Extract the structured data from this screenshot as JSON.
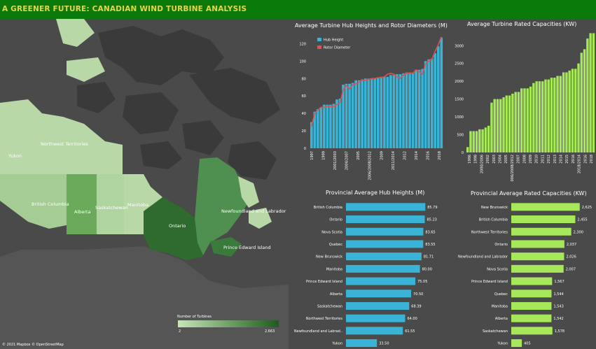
{
  "title": "A GREENER FUTURE: CANADIAN WIND TURBINE ANALYSIS",
  "map": {
    "attribution": "© 2021 Mapbox © OpenStreetMap",
    "legend_title": "Number of Turbines",
    "legend_min": "2",
    "legend_max": "2,663",
    "provinces": [
      {
        "name": "Yukon"
      },
      {
        "name": "Northwest Territories"
      },
      {
        "name": "British Columbia"
      },
      {
        "name": "Alberta"
      },
      {
        "name": "Saskatchewan"
      },
      {
        "name": "Manitoba"
      },
      {
        "name": "Ontario"
      },
      {
        "name": "Newfoundland and Labrador"
      },
      {
        "name": "Prince Edward Island"
      }
    ]
  },
  "colors": {
    "header": "#0a7a0a",
    "hub": "#3ab4d6",
    "rotor": "#e0504e",
    "capacity": "#a6e85a",
    "background": "#4a4a4a",
    "title_text": "#e6d34a"
  },
  "chart_data": [
    {
      "type": "bar",
      "title": "Average Turbine Hub Heights and Rotor Diameters (M)",
      "legend": [
        "Hub Height",
        "Rotor Diameter"
      ],
      "ylim": [
        0,
        130
      ],
      "yticks": [
        0,
        20,
        40,
        60,
        80,
        100,
        120
      ],
      "xtick_labels": [
        "1997",
        "1999",
        "2001/2003",
        "2004/2007",
        "2005",
        "2006/2008/2012",
        "2009",
        "2011/2014",
        "2012",
        "2014",
        "2016",
        "2018"
      ],
      "series": [
        {
          "name": "Hub Height",
          "values": [
            30,
            42,
            45,
            47,
            50,
            50,
            50,
            51,
            56,
            57,
            73,
            74,
            74,
            75,
            78,
            78,
            79,
            80,
            80,
            80,
            80,
            81,
            82,
            82,
            82,
            84,
            84,
            85,
            85,
            86,
            87,
            87,
            87,
            90,
            90,
            91,
            100,
            102,
            103,
            109,
            117,
            127
          ]
        },
        {
          "name": "Rotor Diameter",
          "values": [
            25,
            40,
            44,
            47,
            47,
            48,
            48,
            48,
            50,
            52,
            67,
            72,
            68,
            73,
            74,
            76,
            78,
            78,
            79,
            80,
            80,
            81,
            81,
            82,
            85,
            86,
            85,
            82,
            80,
            84,
            86,
            86,
            86,
            90,
            88,
            85,
            97,
            100,
            102,
            111,
            119,
            128
          ]
        }
      ]
    },
    {
      "type": "bar",
      "title": "Average Turbine Rated Capacities (KW)",
      "ylim": [
        0,
        3300
      ],
      "yticks": [
        0,
        500,
        1000,
        1500,
        2000,
        2500,
        3000
      ],
      "xtick_labels": [
        "1996",
        "1998",
        "2000/2006",
        "2002",
        "2003",
        "2004",
        "2005",
        "2006/2008/2012",
        "2007",
        "2008",
        "2009",
        "2010",
        "2011",
        "2012",
        "2013",
        "2014",
        "2015",
        "2016",
        "2018/2014",
        "2016",
        "2018"
      ],
      "series": [
        {
          "name": "",
          "values": [
            150,
            600,
            600,
            600,
            650,
            650,
            700,
            750,
            1400,
            1500,
            1500,
            1500,
            1550,
            1600,
            1600,
            1650,
            1700,
            1700,
            1800,
            1800,
            1800,
            1850,
            1950,
            2000,
            2000,
            2000,
            2050,
            2050,
            2100,
            2100,
            2150,
            2150,
            2250,
            2250,
            2300,
            2350,
            2350,
            2500,
            2800,
            2900,
            3200,
            3350,
            3350
          ]
        }
      ]
    },
    {
      "type": "bar",
      "orientation": "horizontal",
      "title": "Provincial Average Hub Heights (M)",
      "categories": [
        "British Columbia",
        "Ontario",
        "Nova Scotia",
        "Quebec",
        "New Brunswick",
        "Manitoba",
        "Prince Edward Island",
        "Alberta",
        "Saskatchewan",
        "Northwest Territories",
        "Newfoundland and Labrad..",
        "Yukon"
      ],
      "values": [
        85.79,
        85.23,
        83.65,
        83.55,
        81.71,
        80.0,
        75.05,
        70.5,
        68.39,
        64.0,
        61.55,
        33.5
      ],
      "value_labels": [
        "85.79",
        "85.23",
        "83.65",
        "83.55",
        "81.71",
        "80.00",
        "75.05",
        "70.50",
        "68.39",
        "64.00",
        "61.55",
        "33.50"
      ]
    },
    {
      "type": "bar",
      "orientation": "horizontal",
      "title": "Provincial Average Rated Capacities (KW)",
      "categories": [
        "New Brunswick",
        "British Columbia",
        "Northwest Territories",
        "Ontario",
        "Newfoundland and Labrador",
        "Nova Scotia",
        "Prince Edward Island",
        "Quebec",
        "Manitoba",
        "Alberta",
        "Saskatchewan",
        "Yukon"
      ],
      "values": [
        2625,
        2455,
        2300,
        2037,
        2026,
        2007,
        1567,
        1544,
        1543,
        1542,
        1578,
        405
      ],
      "value_labels": [
        "2,625",
        "2,455",
        "2,300",
        "2,037",
        "2,026",
        "2,007",
        "1,567",
        "1,544",
        "1,543",
        "1,542",
        "1,578",
        "405"
      ]
    }
  ]
}
